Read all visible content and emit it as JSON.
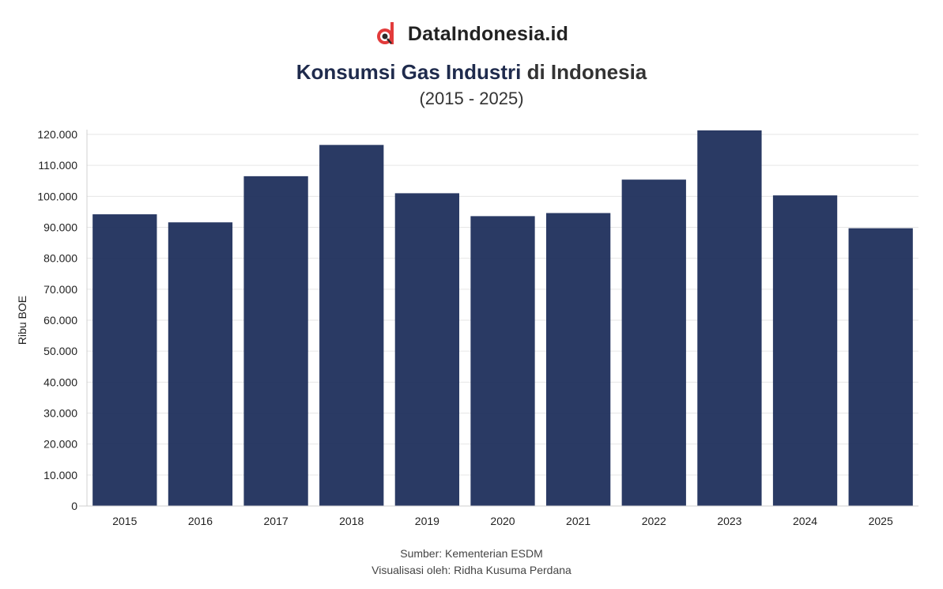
{
  "brand": {
    "name": "DataIndonesia.id",
    "logo_icon": "dataindonesia-logo-icon",
    "logo_color": "#e23b3b"
  },
  "title": {
    "highlight": "Konsumsi Gas Industri",
    "rest": "di Indonesia"
  },
  "subtitle": "(2015 - 2025)",
  "footer": {
    "source": "Sumber: Kementerian ESDM",
    "credit": "Visualisasi oleh: Ridha Kusuma Perdana"
  },
  "colors": {
    "bar": "#1f2f5c",
    "title_accent": "#1f2b4d",
    "grid": "#e6e6e6"
  },
  "chart_data": {
    "type": "bar",
    "categories": [
      "2015",
      "2016",
      "2017",
      "2018",
      "2019",
      "2020",
      "2021",
      "2022",
      "2023",
      "2024",
      "2025"
    ],
    "values": [
      94200,
      91600,
      106500,
      116600,
      101000,
      93600,
      94600,
      105400,
      121300,
      100300,
      89700
    ],
    "ylabel": "Ribu BOE",
    "xlabel": "",
    "ylim": [
      0,
      120000
    ],
    "yticks": [
      "0",
      "10.000",
      "20.000",
      "30.000",
      "40.000",
      "50.000",
      "60.000",
      "70.000",
      "80.000",
      "90.000",
      "100.000",
      "110.000",
      "120.000"
    ],
    "grid": true
  }
}
